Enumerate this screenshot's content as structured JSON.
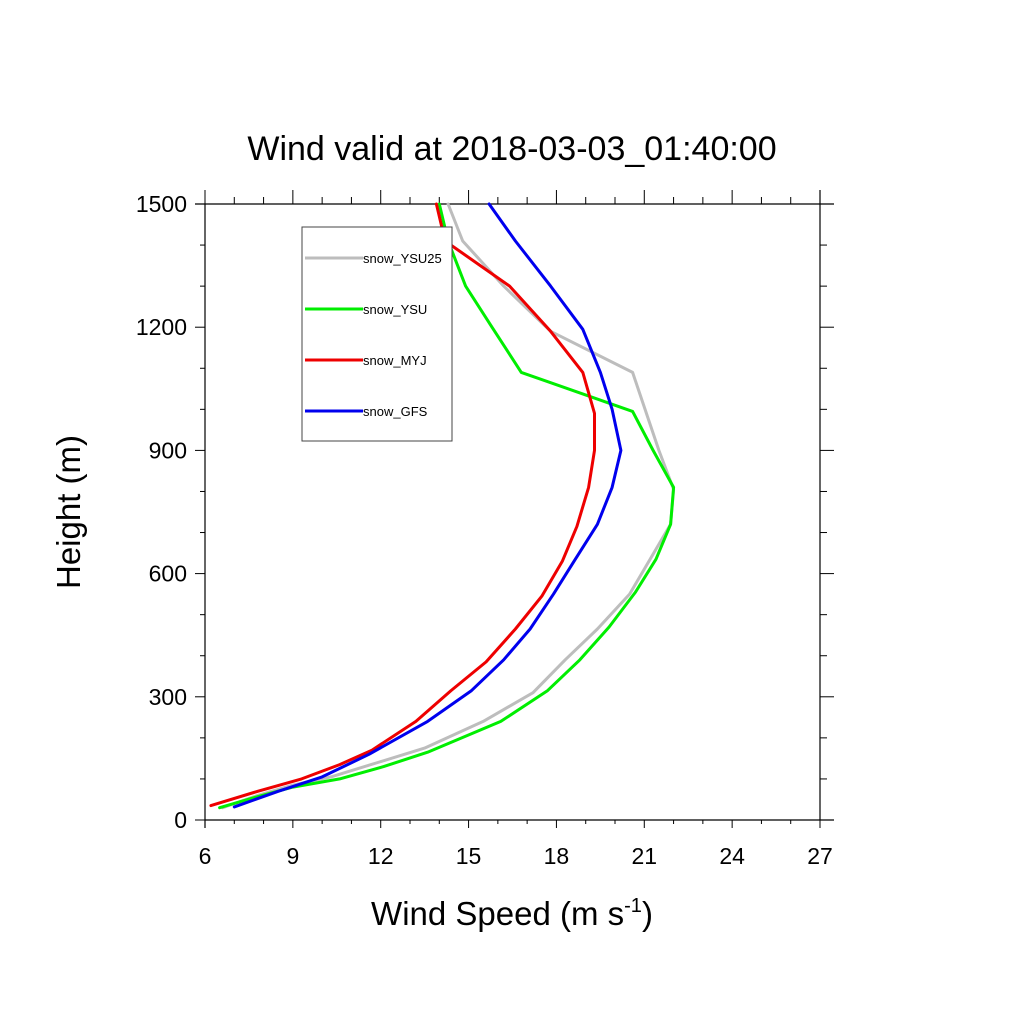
{
  "chart_data": {
    "type": "line",
    "title": "Wind valid at 2018-03-03_01:40:00",
    "xlabel": {
      "main": "Wind Speed (m s",
      "sup": "-1",
      "tail": ")"
    },
    "ylabel": "Height (m)",
    "xlim": [
      6,
      27
    ],
    "ylim": [
      0,
      1500
    ],
    "xticks": [
      6,
      9,
      12,
      15,
      18,
      21,
      24,
      27
    ],
    "yticks": [
      0,
      300,
      600,
      900,
      1200,
      1500
    ],
    "xtick_labels": [
      "6",
      "9",
      "12",
      "15",
      "18",
      "21",
      "24",
      "27"
    ],
    "ytick_labels": [
      "0",
      "300",
      "600",
      "900",
      "1200",
      "1500"
    ],
    "x_minor_step": 1,
    "y_minor_step": 100,
    "grid": false,
    "legend_position": "top-left",
    "series": [
      {
        "name": "snow_YSU25",
        "color": "#bdbdbd",
        "points": [
          [
            6.6,
            30
          ],
          [
            7.8,
            60
          ],
          [
            9.0,
            85
          ],
          [
            10.3,
            105
          ],
          [
            11.9,
            140
          ],
          [
            13.5,
            175
          ],
          [
            15.5,
            240
          ],
          [
            17.2,
            310
          ],
          [
            18.3,
            390
          ],
          [
            19.4,
            465
          ],
          [
            20.5,
            550
          ],
          [
            21.2,
            635
          ],
          [
            21.9,
            720
          ],
          [
            22.0,
            805
          ],
          [
            21.5,
            900
          ],
          [
            20.6,
            1090
          ],
          [
            17.8,
            1190
          ],
          [
            16.2,
            1300
          ],
          [
            14.8,
            1410
          ],
          [
            14.3,
            1500
          ]
        ]
      },
      {
        "name": "snow_YSU",
        "color": "#00ee00",
        "points": [
          [
            6.5,
            30
          ],
          [
            7.7,
            55
          ],
          [
            9.0,
            80
          ],
          [
            10.6,
            100
          ],
          [
            12.1,
            130
          ],
          [
            13.6,
            165
          ],
          [
            16.1,
            240
          ],
          [
            17.7,
            315
          ],
          [
            18.8,
            390
          ],
          [
            19.8,
            470
          ],
          [
            20.7,
            555
          ],
          [
            21.4,
            635
          ],
          [
            21.9,
            720
          ],
          [
            22.0,
            810
          ],
          [
            21.3,
            900
          ],
          [
            20.6,
            995
          ],
          [
            16.8,
            1090
          ],
          [
            15.8,
            1200
          ],
          [
            14.9,
            1300
          ],
          [
            14.3,
            1410
          ],
          [
            14.0,
            1500
          ]
        ]
      },
      {
        "name": "snow_MYJ",
        "color": "#ee0000",
        "points": [
          [
            6.2,
            35
          ],
          [
            7.8,
            70
          ],
          [
            9.3,
            100
          ],
          [
            10.6,
            135
          ],
          [
            11.7,
            170
          ],
          [
            13.2,
            240
          ],
          [
            14.4,
            315
          ],
          [
            15.6,
            385
          ],
          [
            16.6,
            465
          ],
          [
            17.5,
            545
          ],
          [
            18.2,
            630
          ],
          [
            18.7,
            715
          ],
          [
            19.1,
            810
          ],
          [
            19.3,
            900
          ],
          [
            19.3,
            990
          ],
          [
            18.9,
            1090
          ],
          [
            17.8,
            1190
          ],
          [
            16.4,
            1300
          ],
          [
            14.2,
            1410
          ],
          [
            13.9,
            1500
          ]
        ]
      },
      {
        "name": "snow_GFS",
        "color": "#0000ee",
        "points": [
          [
            7.0,
            32
          ],
          [
            8.5,
            70
          ],
          [
            10.0,
            105
          ],
          [
            11.6,
            160
          ],
          [
            13.6,
            240
          ],
          [
            15.1,
            315
          ],
          [
            16.2,
            390
          ],
          [
            17.1,
            465
          ],
          [
            17.9,
            550
          ],
          [
            18.6,
            630
          ],
          [
            19.4,
            720
          ],
          [
            19.9,
            810
          ],
          [
            20.2,
            900
          ],
          [
            19.9,
            1000
          ],
          [
            19.5,
            1090
          ],
          [
            18.9,
            1195
          ],
          [
            17.8,
            1300
          ],
          [
            16.6,
            1410
          ],
          [
            15.7,
            1500
          ]
        ]
      }
    ]
  }
}
